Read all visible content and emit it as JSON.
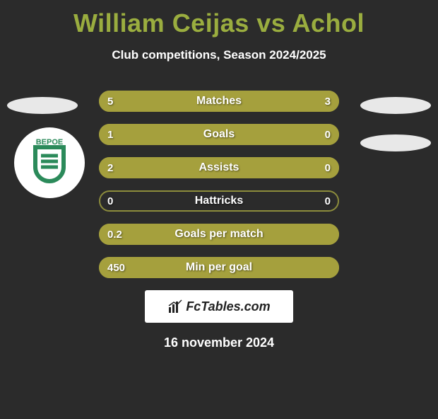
{
  "title": {
    "player1": "William Ceijas",
    "vs": "vs",
    "player2": "Achol"
  },
  "subtitle": "Club competitions, Season 2024/2025",
  "bars": {
    "track_width": 340,
    "track_color": "transparent",
    "border_color": "#8c8c3c",
    "fill_color": "#a5a03d",
    "label_color": "#ffffff",
    "label_fontsize": 16,
    "rows": [
      {
        "label": "Matches",
        "left_val": "5",
        "right_val": "3",
        "left_pct": 62,
        "right_pct": 38
      },
      {
        "label": "Goals",
        "left_val": "1",
        "right_val": "0",
        "left_pct": 78,
        "right_pct": 22
      },
      {
        "label": "Assists",
        "left_val": "2",
        "right_val": "0",
        "left_pct": 78,
        "right_pct": 22
      },
      {
        "label": "Hattricks",
        "left_val": "0",
        "right_val": "0",
        "left_pct": 0,
        "right_pct": 0
      },
      {
        "label": "Goals per match",
        "left_val": "0.2",
        "right_val": "",
        "left_pct": 100,
        "right_pct": 0
      },
      {
        "label": "Min per goal",
        "left_val": "450",
        "right_val": "",
        "left_pct": 100,
        "right_pct": 0
      }
    ]
  },
  "badge": {
    "bg_color": "#ffffff",
    "text": "BEPOE",
    "text_color": "#2b8a5a",
    "shield_color": "#2b8a5a"
  },
  "ellipses": {
    "color": "#e8e8e8"
  },
  "footer_logo": "FcTables.com",
  "date": "16 november 2024",
  "colors": {
    "background": "#2b2b2b",
    "title": "#9aad3f"
  }
}
